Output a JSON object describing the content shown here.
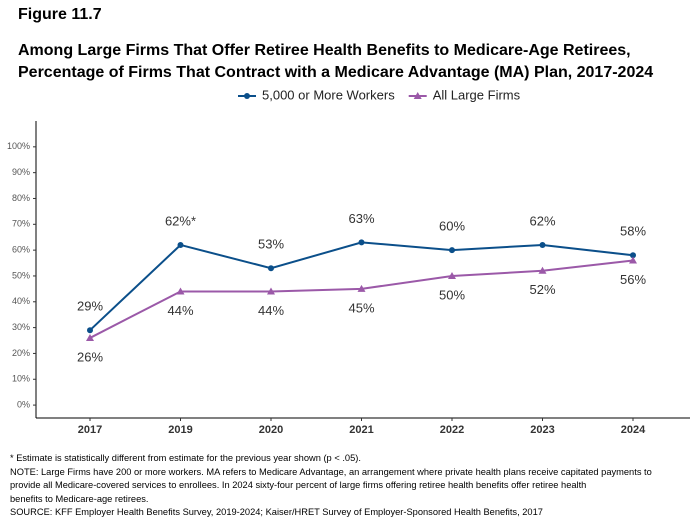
{
  "chart_data": {
    "type": "line",
    "figure_label": "Figure 11.7",
    "title": "Among Large Firms That Offer Retiree Health Benefits to Medicare-Age Retirees, Percentage of Firms That Contract with a Medicare Advantage (MA) Plan, 2017-2024",
    "categories": [
      "2017",
      "2019",
      "2020",
      "2021",
      "2022",
      "2023",
      "2024"
    ],
    "series": [
      {
        "name": "5,000 or More Workers",
        "color": "#0b4f8a",
        "marker": "circle",
        "values": [
          29,
          62,
          53,
          63,
          60,
          62,
          58
        ],
        "value_labels": [
          "29%",
          "62%*",
          "53%",
          "63%",
          "60%",
          "62%",
          "58%"
        ]
      },
      {
        "name": "All Large Firms",
        "color": "#9b59a8",
        "marker": "triangle",
        "values": [
          26,
          44,
          44,
          45,
          50,
          52,
          56
        ],
        "value_labels": [
          "26%",
          "44%",
          "44%",
          "45%",
          "50%",
          "52%",
          "56%"
        ]
      }
    ],
    "ylim": [
      -5,
      110
    ],
    "yticks": [
      {
        "value": 0,
        "label": "0%"
      },
      {
        "value": 10,
        "label": "10%"
      },
      {
        "value": 20,
        "label": "20%"
      },
      {
        "value": 30,
        "label": "30%"
      },
      {
        "value": 40,
        "label": "40%"
      },
      {
        "value": 50,
        "label": "50%"
      },
      {
        "value": 60,
        "label": "60%"
      },
      {
        "value": 70,
        "label": "70%"
      },
      {
        "value": 80,
        "label": "80%"
      },
      {
        "value": 90,
        "label": "90%"
      },
      {
        "value": 100,
        "label": "100%"
      }
    ],
    "grid": false,
    "legend": "top",
    "notes": [
      "* Estimate is statistically different from estimate for the previous year shown (p < .05).",
      "NOTE: Large Firms have 200 or more workers.  MA refers to Medicare Advantage, an arrangement where private health plans receive capitated payments to",
      "provide all Medicare-covered services to enrollees.  In 2024 sixty-four percent of large firms offering retiree health benefits offer retiree health",
      "benefits to Medicare-age retirees.",
      "SOURCE: KFF Employer Health Benefits Survey, 2019-2024; Kaiser/HRET Survey of Employer-Sponsored Health Benefits, 2017"
    ]
  }
}
